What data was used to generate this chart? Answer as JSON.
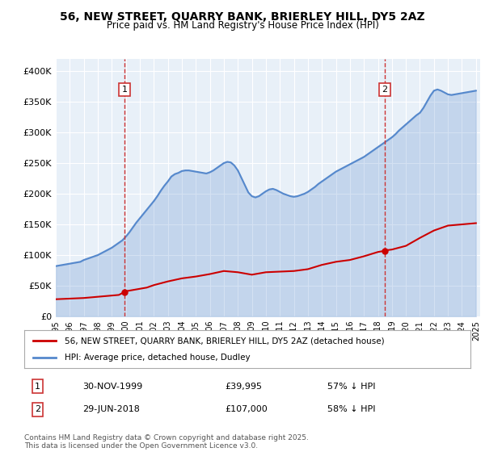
{
  "title": "56, NEW STREET, QUARRY BANK, BRIERLEY HILL, DY5 2AZ",
  "subtitle": "Price paid vs. HM Land Registry's House Price Index (HPI)",
  "legend_line1": "56, NEW STREET, QUARRY BANK, BRIERLEY HILL, DY5 2AZ (detached house)",
  "legend_line2": "HPI: Average price, detached house, Dudley",
  "annotation1": {
    "label": "1",
    "date": "30-NOV-1999",
    "price": "£39,995",
    "note": "57% ↓ HPI",
    "x_year": 1999.92
  },
  "annotation2": {
    "label": "2",
    "date": "29-JUN-2018",
    "price": "£107,000",
    "note": "58% ↓ HPI",
    "x_year": 2018.49
  },
  "footer": "Contains HM Land Registry data © Crown copyright and database right 2025.\nThis data is licensed under the Open Government Licence v3.0.",
  "ylim": [
    0,
    420000
  ],
  "yticks": [
    0,
    50000,
    100000,
    150000,
    200000,
    250000,
    300000,
    350000,
    400000
  ],
  "bg_color": "#e8f0f8",
  "plot_bg": "#e8f0f8",
  "red_color": "#cc0000",
  "blue_color": "#5588cc",
  "grid_color": "#ffffff",
  "dashed_color": "#cc3333",
  "hpi_years": [
    1995,
    1995.25,
    1995.5,
    1995.75,
    1996,
    1996.25,
    1996.5,
    1996.75,
    1997,
    1997.25,
    1997.5,
    1997.75,
    1998,
    1998.25,
    1998.5,
    1998.75,
    1999,
    1999.25,
    1999.5,
    1999.75,
    2000,
    2000.25,
    2000.5,
    2000.75,
    2001,
    2001.25,
    2001.5,
    2001.75,
    2002,
    2002.25,
    2002.5,
    2002.75,
    2003,
    2003.25,
    2003.5,
    2003.75,
    2004,
    2004.25,
    2004.5,
    2004.75,
    2005,
    2005.25,
    2005.5,
    2005.75,
    2006,
    2006.25,
    2006.5,
    2006.75,
    2007,
    2007.25,
    2007.5,
    2007.75,
    2008,
    2008.25,
    2008.5,
    2008.75,
    2009,
    2009.25,
    2009.5,
    2009.75,
    2010,
    2010.25,
    2010.5,
    2010.75,
    2011,
    2011.25,
    2011.5,
    2011.75,
    2012,
    2012.25,
    2012.5,
    2012.75,
    2013,
    2013.25,
    2013.5,
    2013.75,
    2014,
    2014.25,
    2014.5,
    2014.75,
    2015,
    2015.25,
    2015.5,
    2015.75,
    2016,
    2016.25,
    2016.5,
    2016.75,
    2017,
    2017.25,
    2017.5,
    2017.75,
    2018,
    2018.25,
    2018.5,
    2018.75,
    2019,
    2019.25,
    2019.5,
    2019.75,
    2020,
    2020.25,
    2020.5,
    2020.75,
    2021,
    2021.25,
    2021.5,
    2021.75,
    2022,
    2022.25,
    2022.5,
    2022.75,
    2023,
    2023.25,
    2023.5,
    2023.75,
    2024,
    2024.25,
    2024.5,
    2024.75,
    2025
  ],
  "hpi_values": [
    82000,
    83000,
    84000,
    85000,
    86000,
    87000,
    88000,
    89000,
    92000,
    94000,
    96000,
    98000,
    100000,
    103000,
    106000,
    109000,
    112000,
    116000,
    120000,
    124000,
    130000,
    137000,
    145000,
    153000,
    160000,
    167000,
    174000,
    181000,
    188000,
    196000,
    205000,
    213000,
    220000,
    228000,
    232000,
    234000,
    237000,
    238000,
    238000,
    237000,
    236000,
    235000,
    234000,
    233000,
    235000,
    238000,
    242000,
    246000,
    250000,
    252000,
    251000,
    246000,
    238000,
    226000,
    214000,
    202000,
    196000,
    194000,
    196000,
    200000,
    204000,
    207000,
    208000,
    206000,
    203000,
    200000,
    198000,
    196000,
    195000,
    196000,
    198000,
    200000,
    203000,
    207000,
    211000,
    216000,
    220000,
    224000,
    228000,
    232000,
    236000,
    239000,
    242000,
    245000,
    248000,
    251000,
    254000,
    257000,
    260000,
    264000,
    268000,
    272000,
    276000,
    280000,
    284000,
    288000,
    292000,
    297000,
    303000,
    308000,
    313000,
    318000,
    323000,
    328000,
    332000,
    340000,
    350000,
    360000,
    368000,
    370000,
    368000,
    365000,
    362000,
    361000,
    362000,
    363000,
    364000,
    365000,
    366000,
    367000,
    368000
  ],
  "red_years": [
    1995,
    1995.5,
    1996,
    1996.5,
    1997,
    1997.5,
    1998,
    1998.5,
    1999,
    1999.5,
    1999.92,
    2000,
    2000.5,
    2001,
    2001.5,
    2002,
    2003,
    2004,
    2005,
    2006,
    2007,
    2008,
    2009,
    2010,
    2011,
    2012,
    2013,
    2014,
    2015,
    2016,
    2017,
    2018,
    2018.49,
    2018.5,
    2019,
    2020,
    2021,
    2022,
    2023,
    2024,
    2025
  ],
  "red_values": [
    28000,
    28500,
    29000,
    29500,
    30000,
    31000,
    32000,
    33000,
    34000,
    35000,
    39995,
    41000,
    43000,
    45000,
    47000,
    51000,
    57000,
    62000,
    65000,
    69000,
    74000,
    72000,
    68000,
    72000,
    73000,
    74000,
    77000,
    84000,
    89000,
    92000,
    98000,
    105000,
    107000,
    107500,
    109000,
    115000,
    128000,
    140000,
    148000,
    150000,
    152000
  ],
  "xtick_years": [
    1995,
    1996,
    1997,
    1998,
    1999,
    2000,
    2001,
    2002,
    2003,
    2004,
    2005,
    2006,
    2007,
    2008,
    2009,
    2010,
    2011,
    2012,
    2013,
    2014,
    2015,
    2016,
    2017,
    2018,
    2019,
    2020,
    2021,
    2022,
    2023,
    2024,
    2025
  ]
}
